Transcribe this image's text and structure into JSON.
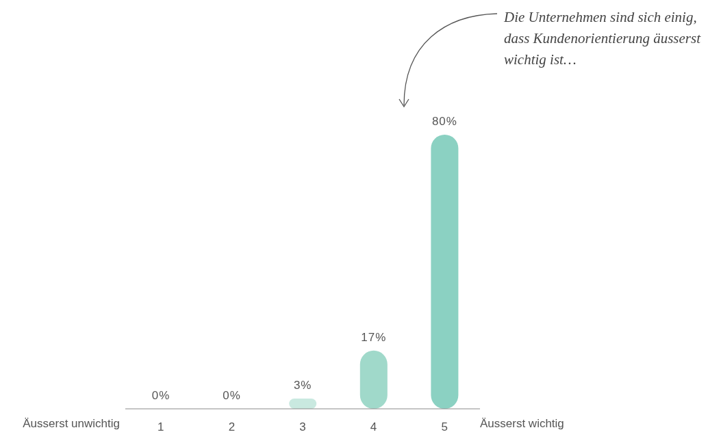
{
  "chart_data": {
    "type": "bar",
    "categories": [
      "1",
      "2",
      "3",
      "4",
      "5"
    ],
    "values": [
      0,
      0,
      3,
      17,
      80
    ],
    "colors": [
      "#c9e9e0",
      "#c9e9e0",
      "#c9e9e0",
      "#a0d9ca",
      "#8bd1c2"
    ],
    "value_labels": [
      "0%",
      "0%",
      "3%",
      "17%",
      "80%"
    ],
    "annotations": [
      "Die Unternehmen sind sich einig, dass Kundenorientierung äusserst wichtig ist…",
      "Äusserst unwichtig",
      "Äusserst wichtig"
    ]
  }
}
